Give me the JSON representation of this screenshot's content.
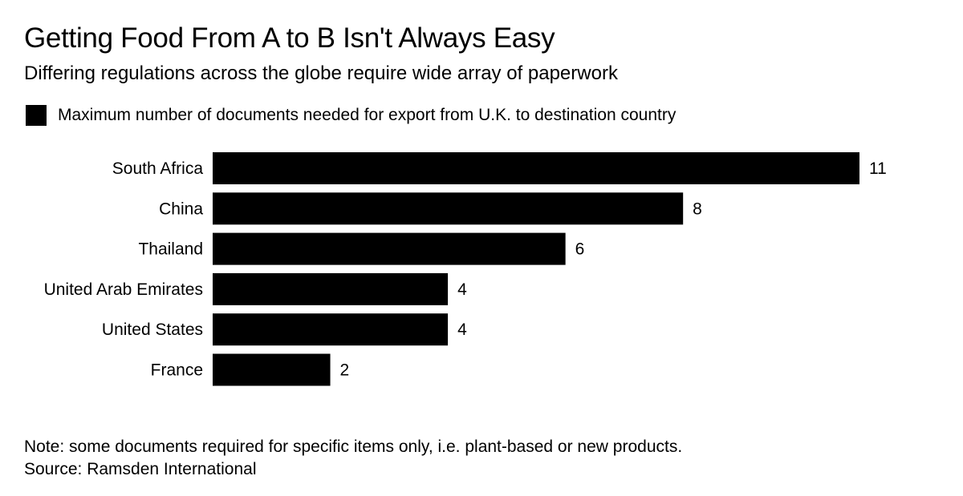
{
  "chart_data": {
    "type": "bar",
    "orientation": "horizontal",
    "title": "Getting Food From A to B Isn't Always Easy",
    "subtitle": "Differing regulations across the globe require wide array of paperwork",
    "legend": {
      "placement": "top-left",
      "items": [
        {
          "label": "Maximum number of documents needed for export from U.K. to destination country",
          "color": "#000000"
        }
      ]
    },
    "categories": [
      "South Africa",
      "China",
      "Thailand",
      "United Arab Emirates",
      "United States",
      "France"
    ],
    "series": [
      {
        "name": "Maximum number of documents needed for export from U.K. to destination country",
        "values": [
          11,
          8,
          6,
          4,
          4,
          2
        ]
      }
    ],
    "value_labels": [
      "11",
      "8",
      "6",
      "4",
      "4",
      "2"
    ],
    "xlim": [
      0,
      11
    ],
    "grid": false,
    "bar_color": "#000000"
  },
  "footer": {
    "note": "Note: some documents required for specific items only, i.e. plant-based or new products.",
    "source": "Source: Ramsden International"
  }
}
